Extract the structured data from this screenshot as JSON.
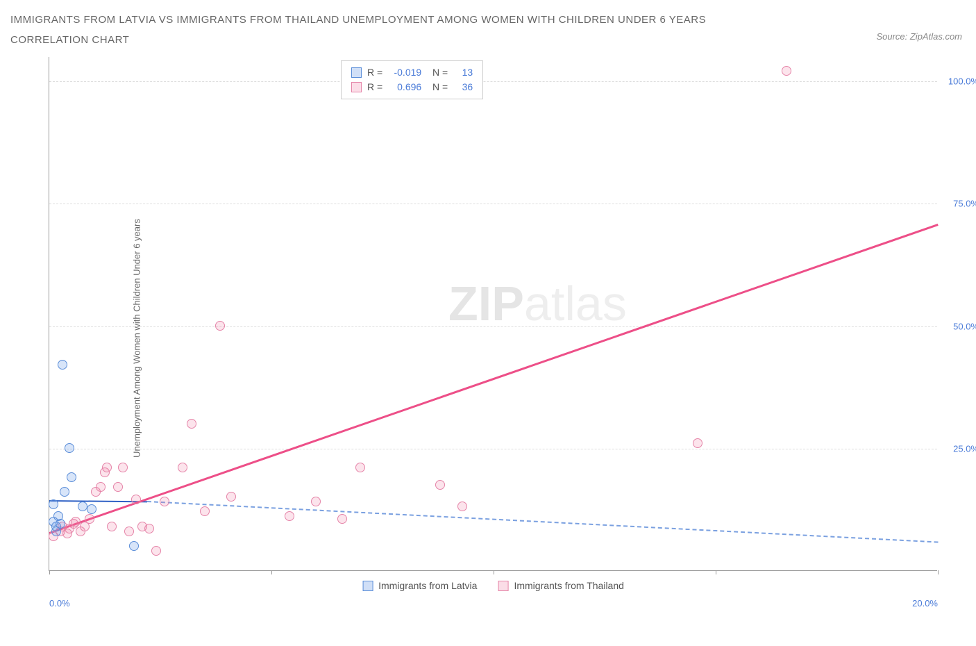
{
  "title": {
    "line1": "IMMIGRANTS FROM LATVIA VS IMMIGRANTS FROM THAILAND UNEMPLOYMENT AMONG WOMEN WITH CHILDREN UNDER 6 YEARS",
    "line2": "CORRELATION CHART"
  },
  "source_label": "Source: ZipAtlas.com",
  "y_axis_label": "Unemployment Among Women with Children Under 6 years",
  "watermark": {
    "part1": "ZIP",
    "part2": "atlas"
  },
  "chart": {
    "type": "scatter",
    "xlim": [
      0,
      20
    ],
    "ylim": [
      0,
      105
    ],
    "x_ticks": [
      0,
      5,
      10,
      15,
      20
    ],
    "x_tick_labels": [
      "0.0%",
      "",
      "",
      "",
      "20.0%"
    ],
    "y_ticks": [
      25,
      50,
      75,
      100
    ],
    "y_tick_labels": [
      "25.0%",
      "50.0%",
      "75.0%",
      "100.0%"
    ],
    "grid_color": "#dddddd",
    "axis_color": "#999999",
    "background_color": "#ffffff"
  },
  "series": {
    "latvia": {
      "label": "Immigrants from Latvia",
      "color_fill": "rgba(100,150,230,0.25)",
      "color_stroke": "#5a8dd8",
      "R": "-0.019",
      "N": "13",
      "trend": {
        "x1": 0,
        "y1": 14.5,
        "x2": 2.2,
        "y2": 14.3,
        "style": "solid",
        "width": 2.5
      },
      "trend_ext": {
        "x1": 2.2,
        "y1": 14.3,
        "x2": 20,
        "y2": 6.0,
        "style": "dashed",
        "width": 2
      },
      "points": [
        {
          "x": 0.15,
          "y": 9.0
        },
        {
          "x": 0.2,
          "y": 11.0
        },
        {
          "x": 0.1,
          "y": 13.5
        },
        {
          "x": 0.35,
          "y": 16.0
        },
        {
          "x": 0.5,
          "y": 19.0
        },
        {
          "x": 0.45,
          "y": 25.0
        },
        {
          "x": 0.3,
          "y": 42.0
        },
        {
          "x": 0.95,
          "y": 12.5
        },
        {
          "x": 0.75,
          "y": 13.0
        },
        {
          "x": 0.15,
          "y": 8.0
        },
        {
          "x": 0.25,
          "y": 9.5
        },
        {
          "x": 1.9,
          "y": 5.0
        },
        {
          "x": 0.1,
          "y": 10.0
        }
      ]
    },
    "thailand": {
      "label": "Immigrants from Thailand",
      "color_fill": "rgba(240,120,160,0.2)",
      "color_stroke": "#e584a8",
      "R": "0.696",
      "N": "36",
      "trend": {
        "x1": 0,
        "y1": 8.0,
        "x2": 20,
        "y2": 71.0,
        "style": "solid",
        "width": 2.5
      },
      "points": [
        {
          "x": 0.1,
          "y": 7.0
        },
        {
          "x": 0.25,
          "y": 8.0
        },
        {
          "x": 0.3,
          "y": 9.0
        },
        {
          "x": 0.45,
          "y": 8.5
        },
        {
          "x": 0.55,
          "y": 9.5
        },
        {
          "x": 0.6,
          "y": 10.0
        },
        {
          "x": 0.7,
          "y": 8.0
        },
        {
          "x": 0.8,
          "y": 9.0
        },
        {
          "x": 0.9,
          "y": 10.5
        },
        {
          "x": 1.05,
          "y": 16.0
        },
        {
          "x": 1.15,
          "y": 17.0
        },
        {
          "x": 1.25,
          "y": 20.0
        },
        {
          "x": 1.3,
          "y": 21.0
        },
        {
          "x": 1.4,
          "y": 9.0
        },
        {
          "x": 1.55,
          "y": 17.0
        },
        {
          "x": 1.65,
          "y": 21.0
        },
        {
          "x": 1.8,
          "y": 8.0
        },
        {
          "x": 1.95,
          "y": 14.5
        },
        {
          "x": 2.1,
          "y": 9.0
        },
        {
          "x": 2.25,
          "y": 8.5
        },
        {
          "x": 2.4,
          "y": 4.0
        },
        {
          "x": 2.6,
          "y": 14.0
        },
        {
          "x": 3.0,
          "y": 21.0
        },
        {
          "x": 3.2,
          "y": 30.0
        },
        {
          "x": 3.5,
          "y": 12.0
        },
        {
          "x": 3.85,
          "y": 50.0
        },
        {
          "x": 4.1,
          "y": 15.0
        },
        {
          "x": 5.4,
          "y": 11.0
        },
        {
          "x": 6.0,
          "y": 14.0
        },
        {
          "x": 6.6,
          "y": 10.5
        },
        {
          "x": 7.0,
          "y": 21.0
        },
        {
          "x": 8.8,
          "y": 17.5
        },
        {
          "x": 9.3,
          "y": 13.0
        },
        {
          "x": 14.6,
          "y": 26.0
        },
        {
          "x": 16.6,
          "y": 102.0
        },
        {
          "x": 0.4,
          "y": 7.5
        }
      ]
    }
  },
  "legend_bottom": {
    "latvia": "Immigrants from Latvia",
    "thailand": "Immigrants from Thailand"
  }
}
